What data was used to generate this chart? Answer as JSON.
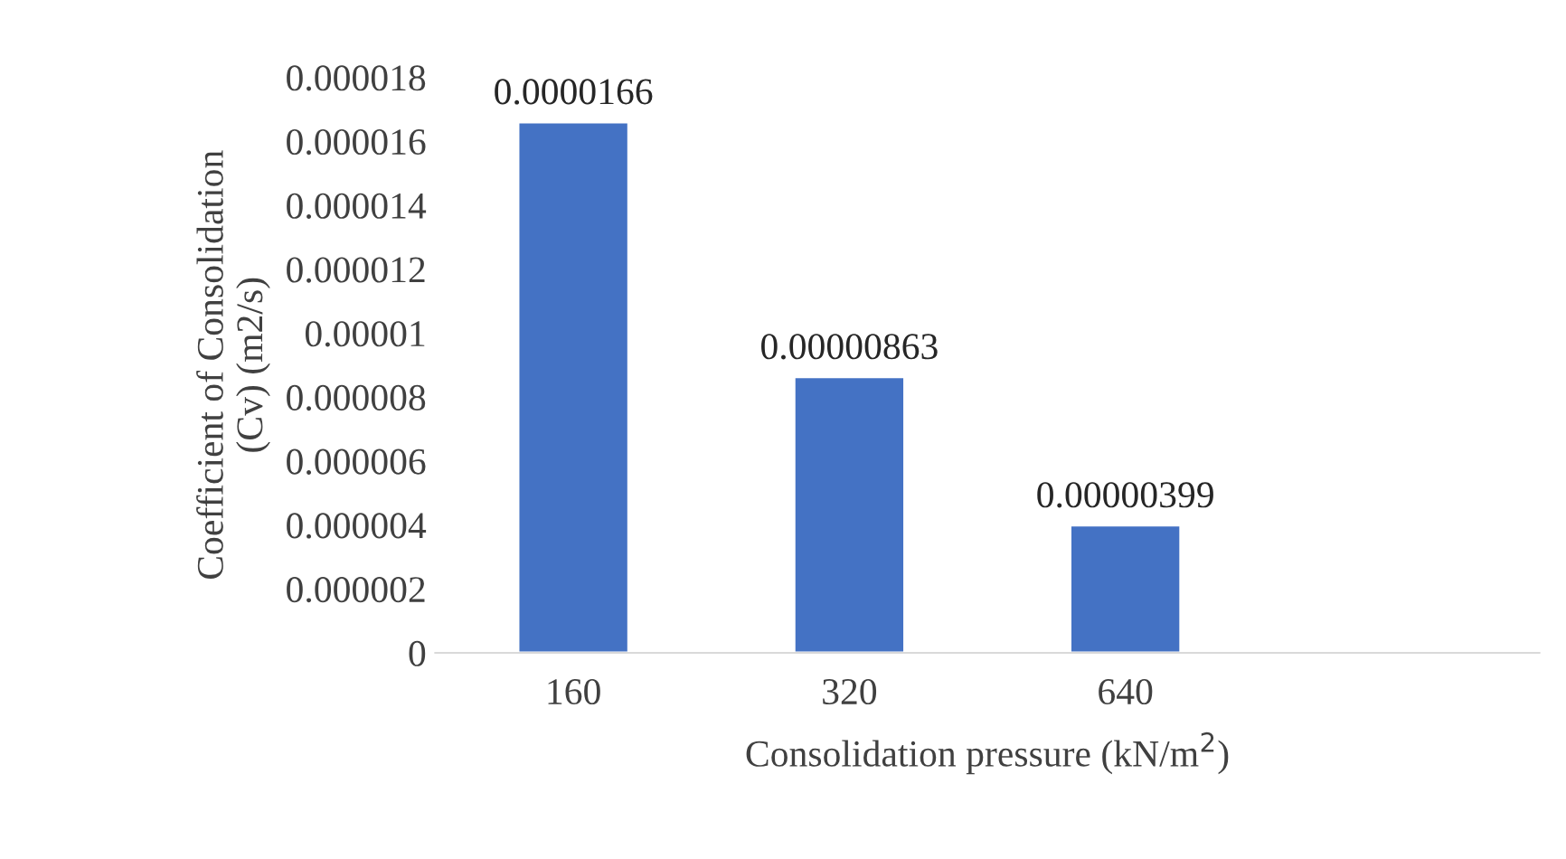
{
  "chart_data": {
    "type": "bar",
    "xlabel": "Consolidation pressure (kN/m$^{2}$)",
    "ylabel": "Coefficient of Consolidation\n(Cv) (m2/s)",
    "categories": [
      "160",
      "320",
      "640",
      null
    ],
    "series": [
      {
        "color": "#4472c4",
        "values": [
          1.66e-05,
          8.63e-06,
          3.99e-06,
          null
        ],
        "value_labels": [
          "0.0000166",
          "0.00000863",
          "0.00000399",
          null
        ]
      }
    ],
    "ylim": [
      0,
      1.8e-05
    ],
    "yticks": [
      0,
      {
        "value": 2e-06,
        "label": "0.000002"
      },
      {
        "value": 4e-06,
        "label": "0.000004"
      },
      {
        "value": 6e-06,
        "label": "0.000006"
      },
      {
        "value": 8e-06,
        "label": "0.000008"
      },
      {
        "value": 1e-05,
        "label": "0.00001"
      },
      {
        "value": 1.2e-05,
        "label": "0.000012"
      },
      {
        "value": 1.4e-05,
        "label": "0.000014"
      },
      {
        "value": 1.6e-05,
        "label": "0.000016"
      },
      {
        "value": 1.8e-05,
        "label": "0.000018"
      }
    ],
    "grid": false,
    "legend": false
  }
}
